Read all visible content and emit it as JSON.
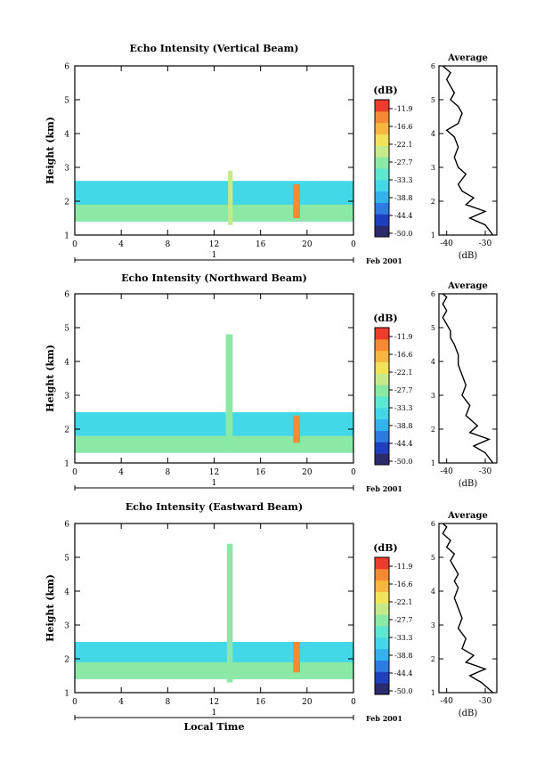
{
  "chart_data": [
    {
      "type": "heatmap",
      "title": "Echo Intensity (Vertical Beam)",
      "ylabel": "Height (km)",
      "xlabel": "",
      "x_ticks": [
        "0",
        "4",
        "8",
        "12",
        "16",
        "20",
        "0"
      ],
      "y_ticks": [
        "1",
        "2",
        "3",
        "4",
        "5",
        "6"
      ],
      "xlim": [
        0,
        24
      ],
      "ylim": [
        1,
        6
      ],
      "date_marker": "1",
      "date_label": "Feb 2001",
      "colorbar": {
        "unit": "(dB)",
        "ticks": [
          "-11.9",
          "-16.6",
          "-22.1",
          "-27.7",
          "-33.3",
          "-38.8",
          "-44.4",
          "-50.0"
        ]
      },
      "features": [
        {
          "x": [
            0,
            24
          ],
          "y": [
            1.4,
            2.6
          ],
          "value": -33
        },
        {
          "x": [
            0,
            24
          ],
          "y": [
            1.4,
            1.9
          ],
          "value": -29
        },
        {
          "x": [
            13.2,
            13.6
          ],
          "y": [
            1.3,
            2.9
          ],
          "value": -24
        },
        {
          "x": [
            18.8,
            19.4
          ],
          "y": [
            1.5,
            2.5
          ],
          "value": -14
        }
      ],
      "profile": {
        "title": "Average",
        "xlabel": "(dB)",
        "x_ticks": [
          "-40",
          "-30"
        ],
        "xlim": [
          -42,
          -27
        ],
        "y_ticks": [
          "1",
          "2",
          "3",
          "4",
          "5",
          "6"
        ],
        "x": [
          -28,
          -30,
          -34,
          -30,
          -35,
          -33,
          -36,
          -37,
          -35,
          -37,
          -38,
          -37,
          -38,
          -40,
          -37,
          -36,
          -37,
          -39,
          -38,
          -39,
          -40,
          -39,
          -41
        ],
        "y": [
          1.0,
          1.3,
          1.5,
          1.7,
          1.9,
          2.1,
          2.3,
          2.5,
          2.8,
          3.0,
          3.3,
          3.6,
          3.9,
          4.1,
          4.3,
          4.6,
          4.8,
          5.0,
          5.2,
          5.4,
          5.6,
          5.8,
          6.0
        ]
      }
    },
    {
      "type": "heatmap",
      "title": "Echo Intensity (Northward Beam)",
      "ylabel": "Height (km)",
      "xlabel": "",
      "x_ticks": [
        "0",
        "4",
        "8",
        "12",
        "16",
        "20",
        "0"
      ],
      "y_ticks": [
        "1",
        "2",
        "3",
        "4",
        "5",
        "6"
      ],
      "xlim": [
        0,
        24
      ],
      "ylim": [
        1,
        6
      ],
      "date_marker": "1",
      "date_label": "Feb 2001",
      "colorbar": {
        "unit": "(dB)",
        "ticks": [
          "-11.9",
          "-16.6",
          "-22.1",
          "-27.7",
          "-33.3",
          "-38.8",
          "-44.4",
          "-50.0"
        ]
      },
      "features": [
        {
          "x": [
            0,
            24
          ],
          "y": [
            1.3,
            2.5
          ],
          "value": -33
        },
        {
          "x": [
            0,
            24
          ],
          "y": [
            1.3,
            1.8
          ],
          "value": -28
        },
        {
          "x": [
            13.0,
            13.6
          ],
          "y": [
            1.3,
            4.8
          ],
          "value": -27
        },
        {
          "x": [
            18.8,
            19.4
          ],
          "y": [
            1.6,
            2.4
          ],
          "value": -14
        }
      ],
      "profile": {
        "title": "Average",
        "xlabel": "(dB)",
        "x_ticks": [
          "-40",
          "-30"
        ],
        "xlim": [
          -42,
          -27
        ],
        "y_ticks": [
          "1",
          "2",
          "3",
          "4",
          "5",
          "6"
        ],
        "x": [
          -28,
          -30,
          -33,
          -29,
          -34,
          -32,
          -35,
          -34,
          -36,
          -35,
          -36,
          -37,
          -37,
          -38,
          -39,
          -39,
          -40,
          -41,
          -40,
          -41,
          -40,
          -41
        ],
        "y": [
          1.0,
          1.3,
          1.5,
          1.7,
          1.9,
          2.1,
          2.4,
          2.7,
          3.0,
          3.3,
          3.6,
          3.9,
          4.2,
          4.5,
          4.7,
          4.9,
          5.1,
          5.3,
          5.5,
          5.7,
          5.9,
          6.0
        ]
      }
    },
    {
      "type": "heatmap",
      "title": "Echo Intensity (Eastward Beam)",
      "ylabel": "Height (km)",
      "xlabel": "Local Time",
      "x_ticks": [
        "0",
        "4",
        "8",
        "12",
        "16",
        "20",
        "0"
      ],
      "y_ticks": [
        "1",
        "2",
        "3",
        "4",
        "5",
        "6"
      ],
      "xlim": [
        0,
        24
      ],
      "ylim": [
        1,
        6
      ],
      "date_marker": "1",
      "date_label": "Feb 2001",
      "colorbar": {
        "unit": "(dB)",
        "ticks": [
          "-11.9",
          "-16.6",
          "-22.1",
          "-27.7",
          "-33.3",
          "-38.8",
          "-44.4",
          "-50.0"
        ]
      },
      "features": [
        {
          "x": [
            0,
            24
          ],
          "y": [
            1.4,
            2.5
          ],
          "value": -33
        },
        {
          "x": [
            0,
            24
          ],
          "y": [
            1.4,
            1.9
          ],
          "value": -29
        },
        {
          "x": [
            13.1,
            13.6
          ],
          "y": [
            1.3,
            5.4
          ],
          "value": -27
        },
        {
          "x": [
            18.8,
            19.4
          ],
          "y": [
            1.6,
            2.5
          ],
          "value": -14
        }
      ],
      "profile": {
        "title": "Average",
        "xlabel": "(dB)",
        "x_ticks": [
          "-40",
          "-30"
        ],
        "xlim": [
          -42,
          -27
        ],
        "y_ticks": [
          "1",
          "2",
          "3",
          "4",
          "5",
          "6"
        ],
        "x": [
          -28,
          -31,
          -34,
          -30,
          -35,
          -33,
          -36,
          -35,
          -37,
          -36,
          -37,
          -38,
          -37,
          -38,
          -37,
          -38,
          -39,
          -38,
          -40,
          -39,
          -41,
          -40,
          -41
        ],
        "y": [
          1.0,
          1.3,
          1.5,
          1.7,
          1.9,
          2.1,
          2.3,
          2.6,
          2.9,
          3.2,
          3.5,
          3.8,
          4.1,
          4.3,
          4.5,
          4.7,
          4.9,
          5.1,
          5.3,
          5.5,
          5.7,
          5.9,
          6.0
        ]
      }
    }
  ]
}
